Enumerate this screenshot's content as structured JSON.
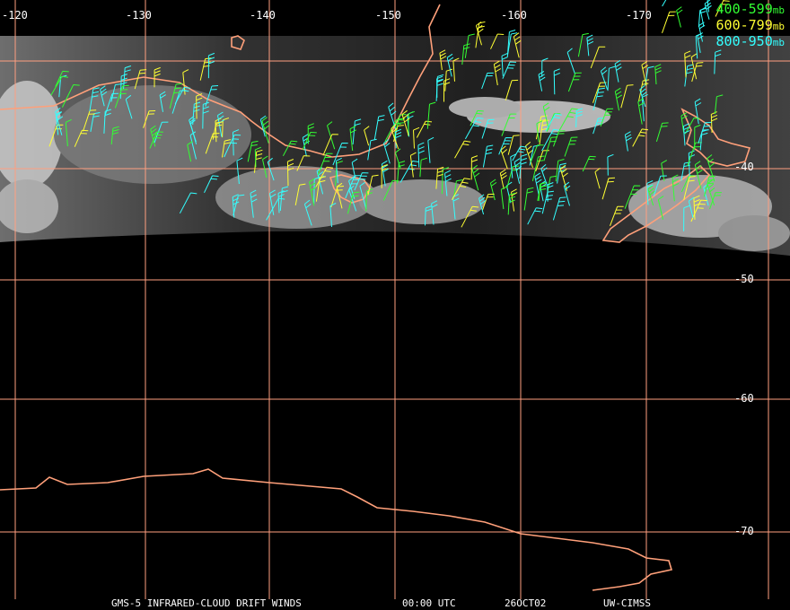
{
  "lon_labels": [
    "-120",
    "-130",
    "-140",
    "-150",
    "-160",
    "-170"
  ],
  "lat_labels": [
    "-40",
    "-50",
    "-60",
    "-70"
  ],
  "legend": [
    {
      "range": "400-599",
      "unit": "mb",
      "color": "#33ff33"
    },
    {
      "range": "600-799",
      "unit": "mb",
      "color": "#ffff33"
    },
    {
      "range": "800-950",
      "unit": "mb",
      "color": "#33ffff"
    }
  ],
  "footer": {
    "product": "GMS-5 INFRARED-CLOUD DRIFT WINDS",
    "time": "00:00 UTC",
    "date": "26OCT02",
    "source": "UW-CIMSS"
  },
  "colors": {
    "grid": "#ff9f80",
    "coast": "#ffa07a",
    "background": "#000000"
  }
}
